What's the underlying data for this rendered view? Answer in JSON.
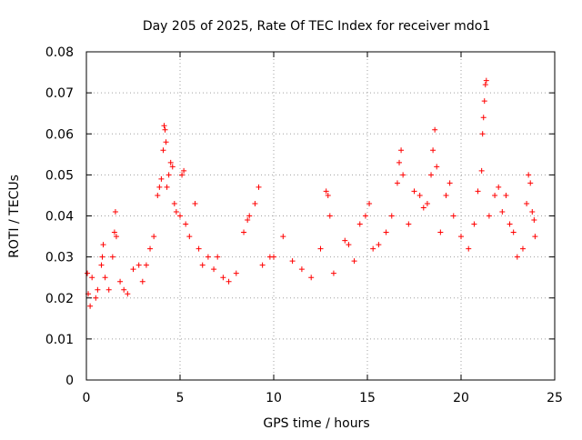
{
  "colors": {
    "series": "#ff0000",
    "grid": "#a0a0a0",
    "axis": "#000000"
  },
  "chart_data": {
    "type": "scatter",
    "title": "Day 205 of 2025, Rate Of TEC Index for receiver mdo1",
    "xlabel": "GPS time / hours",
    "ylabel": "ROTI / TECUs",
    "xlim": [
      0,
      25
    ],
    "ylim": [
      0,
      0.08
    ],
    "x_ticks": [
      "0",
      "5",
      "10",
      "15",
      "20",
      "25"
    ],
    "y_ticks": [
      "0",
      "0.01",
      "0.02",
      "0.03",
      "0.04",
      "0.05",
      "0.06",
      "0.07",
      "0.08"
    ],
    "grid": true,
    "marker": "+",
    "legend": "none",
    "series": [
      {
        "points": [
          [
            0.05,
            0.026
          ],
          [
            0.1,
            0.021
          ],
          [
            0.2,
            0.018
          ],
          [
            0.3,
            0.025
          ],
          [
            0.5,
            0.02
          ],
          [
            0.6,
            0.022
          ],
          [
            0.8,
            0.028
          ],
          [
            0.85,
            0.03
          ],
          [
            0.9,
            0.033
          ],
          [
            1.0,
            0.025
          ],
          [
            1.2,
            0.022
          ],
          [
            1.4,
            0.03
          ],
          [
            1.5,
            0.036
          ],
          [
            1.55,
            0.041
          ],
          [
            1.6,
            0.035
          ],
          [
            1.8,
            0.024
          ],
          [
            2.0,
            0.022
          ],
          [
            2.2,
            0.021
          ],
          [
            2.5,
            0.027
          ],
          [
            2.8,
            0.028
          ],
          [
            3.0,
            0.024
          ],
          [
            3.2,
            0.028
          ],
          [
            3.4,
            0.032
          ],
          [
            3.6,
            0.035
          ],
          [
            3.8,
            0.045
          ],
          [
            3.9,
            0.047
          ],
          [
            4.0,
            0.049
          ],
          [
            4.1,
            0.056
          ],
          [
            4.15,
            0.062
          ],
          [
            4.2,
            0.061
          ],
          [
            4.25,
            0.058
          ],
          [
            4.3,
            0.047
          ],
          [
            4.4,
            0.05
          ],
          [
            4.5,
            0.053
          ],
          [
            4.6,
            0.052
          ],
          [
            4.7,
            0.043
          ],
          [
            4.8,
            0.041
          ],
          [
            5.0,
            0.04
          ],
          [
            5.1,
            0.05
          ],
          [
            5.2,
            0.051
          ],
          [
            5.3,
            0.038
          ],
          [
            5.5,
            0.035
          ],
          [
            5.8,
            0.043
          ],
          [
            6.0,
            0.032
          ],
          [
            6.2,
            0.028
          ],
          [
            6.5,
            0.03
          ],
          [
            6.8,
            0.027
          ],
          [
            7.0,
            0.03
          ],
          [
            7.3,
            0.025
          ],
          [
            7.6,
            0.024
          ],
          [
            8.0,
            0.026
          ],
          [
            8.4,
            0.036
          ],
          [
            8.6,
            0.039
          ],
          [
            8.7,
            0.04
          ],
          [
            9.0,
            0.043
          ],
          [
            9.2,
            0.047
          ],
          [
            9.4,
            0.028
          ],
          [
            9.8,
            0.03
          ],
          [
            10.0,
            0.03
          ],
          [
            10.5,
            0.035
          ],
          [
            11.0,
            0.029
          ],
          [
            11.5,
            0.027
          ],
          [
            12.0,
            0.025
          ],
          [
            12.5,
            0.032
          ],
          [
            12.8,
            0.046
          ],
          [
            12.9,
            0.045
          ],
          [
            13.0,
            0.04
          ],
          [
            13.2,
            0.026
          ],
          [
            13.8,
            0.034
          ],
          [
            14.0,
            0.033
          ],
          [
            14.3,
            0.029
          ],
          [
            14.6,
            0.038
          ],
          [
            14.9,
            0.04
          ],
          [
            15.1,
            0.043
          ],
          [
            15.3,
            0.032
          ],
          [
            15.6,
            0.033
          ],
          [
            16.0,
            0.036
          ],
          [
            16.3,
            0.04
          ],
          [
            16.6,
            0.048
          ],
          [
            16.7,
            0.053
          ],
          [
            16.8,
            0.056
          ],
          [
            16.9,
            0.05
          ],
          [
            17.2,
            0.038
          ],
          [
            17.5,
            0.046
          ],
          [
            17.8,
            0.045
          ],
          [
            18.0,
            0.042
          ],
          [
            18.2,
            0.043
          ],
          [
            18.4,
            0.05
          ],
          [
            18.5,
            0.056
          ],
          [
            18.6,
            0.061
          ],
          [
            18.7,
            0.052
          ],
          [
            18.9,
            0.036
          ],
          [
            19.2,
            0.045
          ],
          [
            19.4,
            0.048
          ],
          [
            19.6,
            0.04
          ],
          [
            20.0,
            0.035
          ],
          [
            20.4,
            0.032
          ],
          [
            20.7,
            0.038
          ],
          [
            20.9,
            0.046
          ],
          [
            21.1,
            0.051
          ],
          [
            21.15,
            0.06
          ],
          [
            21.2,
            0.064
          ],
          [
            21.25,
            0.068
          ],
          [
            21.3,
            0.072
          ],
          [
            21.35,
            0.073
          ],
          [
            21.5,
            0.04
          ],
          [
            21.8,
            0.045
          ],
          [
            22.0,
            0.047
          ],
          [
            22.2,
            0.041
          ],
          [
            22.4,
            0.045
          ],
          [
            22.6,
            0.038
          ],
          [
            22.8,
            0.036
          ],
          [
            23.0,
            0.03
          ],
          [
            23.3,
            0.032
          ],
          [
            23.5,
            0.043
          ],
          [
            23.6,
            0.05
          ],
          [
            23.7,
            0.048
          ],
          [
            23.8,
            0.041
          ],
          [
            23.9,
            0.039
          ],
          [
            23.95,
            0.035
          ]
        ]
      }
    ]
  }
}
